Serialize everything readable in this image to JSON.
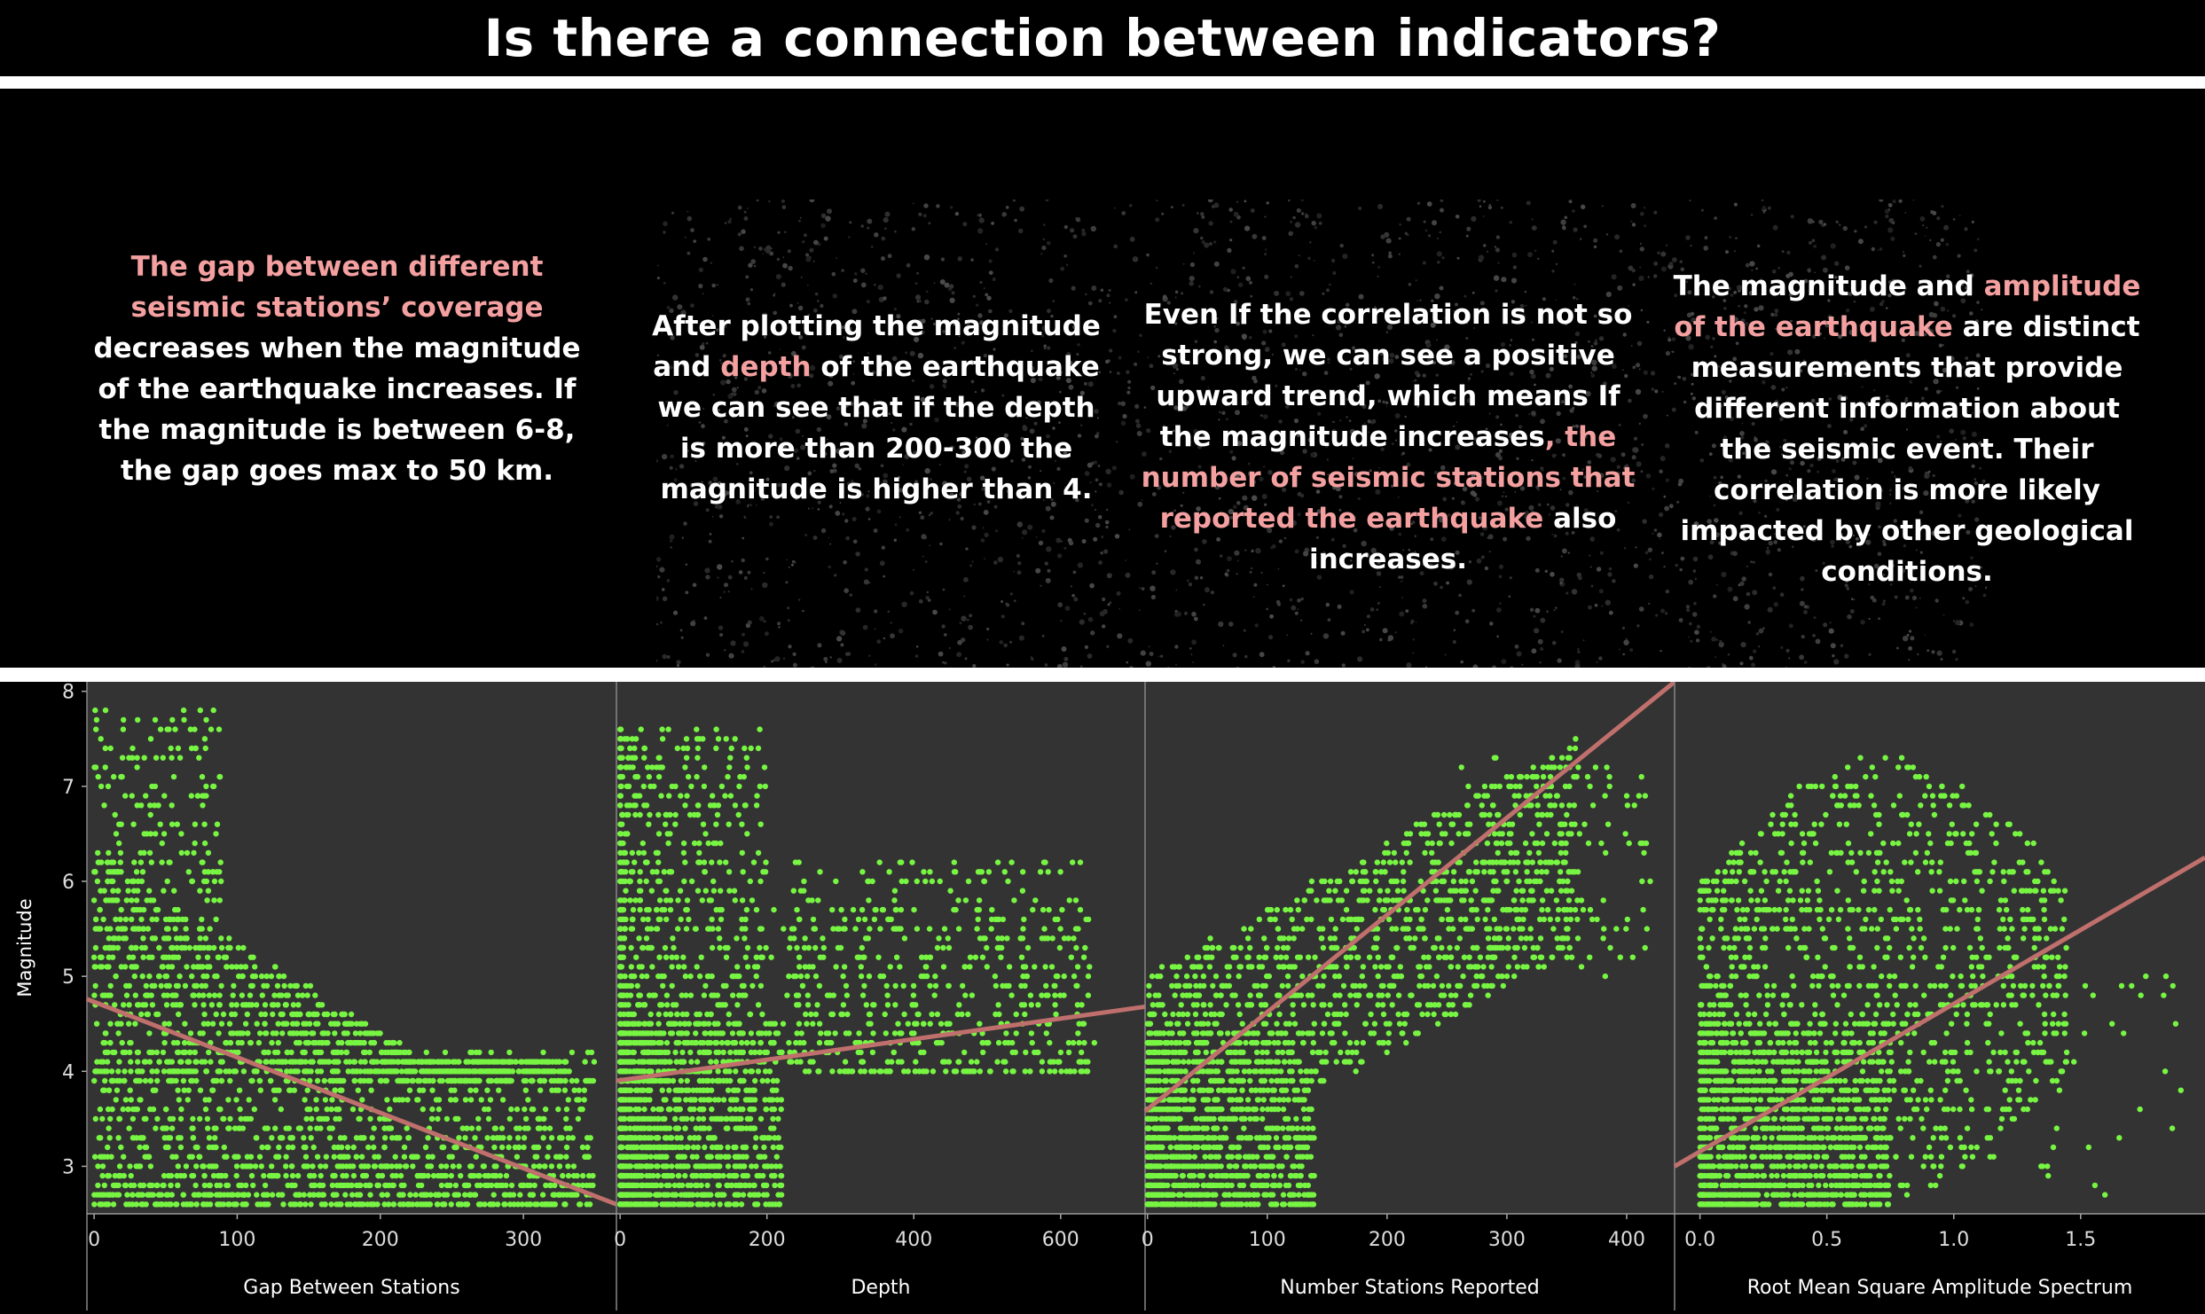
{
  "title": "Is there a connection between indicators?",
  "insights": [
    {
      "hl1": "The gap between different seismic stations’ coverage",
      "t1": " decreases when the magnitude of the earthquake increases. If the magnitude is between 6-8, the gap goes max to 50 km."
    },
    {
      "t1": "After plotting the magnitude and ",
      "hl1": "depth",
      "t2": " of the earthquake we can see that if the depth is more than 200-300 the magnitude is  higher than 4."
    },
    {
      "t1": "Even If the correlation is not so strong, we can see a positive upward trend, which means If the magnitude increases",
      "hl1": ", the number of seismic stations that reported the earthquake",
      "t2": " also increases."
    },
    {
      "t1": "The magnitude and ",
      "hl1": "amplitude of the earthquake",
      "t2": " are distinct measurements that provide different information about the seismic event. Their correlation is more likely impacted by other geological conditions."
    }
  ],
  "colors": {
    "points": "#77f542",
    "trend": "#c0706c",
    "highlight": "#f4a0a0",
    "panel_bg": "#333333"
  },
  "chart_data": {
    "type": "scatter",
    "ylabel": "Magnitude",
    "ylim": [
      2.5,
      8.1
    ],
    "y_ticks": [
      "3",
      "4",
      "5",
      "6",
      "7",
      "8"
    ],
    "panels": [
      {
        "xlabel": "Gap Between Stations",
        "xlim": [
          -5,
          365
        ],
        "x_ticks": [
          {
            "v": 0,
            "label": "0"
          },
          {
            "v": 100,
            "label": "100"
          },
          {
            "v": 200,
            "label": "200"
          },
          {
            "v": 300,
            "label": "300"
          }
        ],
        "trend": [
          [
            -5,
            4.76
          ],
          [
            365,
            2.6
          ]
        ]
      },
      {
        "xlabel": "Depth",
        "xlim": [
          -5,
          715
        ],
        "x_ticks": [
          {
            "v": 0,
            "label": "0"
          },
          {
            "v": 200,
            "label": "200"
          },
          {
            "v": 400,
            "label": "400"
          },
          {
            "v": 600,
            "label": "600"
          }
        ],
        "trend": [
          [
            -5,
            3.9
          ],
          [
            715,
            4.68
          ]
        ]
      },
      {
        "xlabel": "Number Stations Reported",
        "xlim": [
          -2,
          440
        ],
        "x_ticks": [
          {
            "v": 0,
            "label": "0"
          },
          {
            "v": 100,
            "label": "100"
          },
          {
            "v": 200,
            "label": "200"
          },
          {
            "v": 300,
            "label": "300"
          },
          {
            "v": 400,
            "label": "400"
          }
        ],
        "trend": [
          [
            -2,
            3.58
          ],
          [
            440,
            8.1
          ]
        ]
      },
      {
        "xlabel": "Root Mean Square Amplitude Spectrum",
        "xlim": [
          -0.1,
          1.99
        ],
        "x_ticks": [
          {
            "v": 0,
            "label": "0.0"
          },
          {
            "v": 0.5,
            "label": "0.5"
          },
          {
            "v": 1,
            "label": "1.0"
          },
          {
            "v": 1.5,
            "label": "1.5"
          }
        ],
        "trend": [
          [
            -0.1,
            3.0
          ],
          [
            1.99,
            6.25
          ]
        ]
      }
    ]
  }
}
